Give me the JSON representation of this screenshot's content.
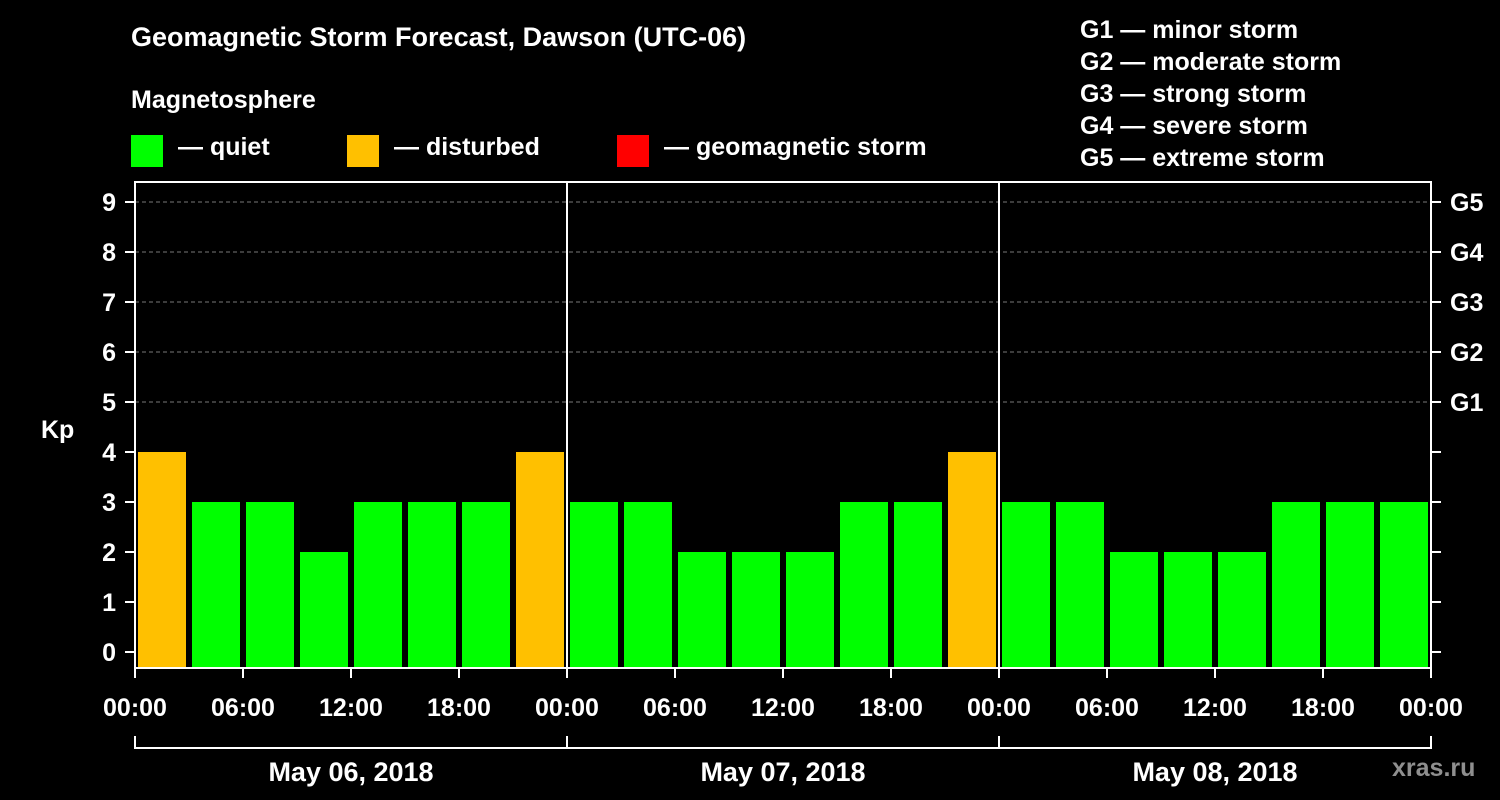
{
  "header": {
    "title": "Geomagnetic Storm Forecast, Dawson (UTC-06)",
    "subtitle": "Magnetosphere"
  },
  "legend": [
    {
      "label": "— quiet",
      "color": "#00ff00"
    },
    {
      "label": "— disturbed",
      "color": "#ffc000"
    },
    {
      "label": "— geomagnetic storm",
      "color": "#ff0000"
    }
  ],
  "storm_levels": [
    "G1 — minor storm",
    "G2 — moderate storm",
    "G3 — strong storm",
    "G4 — severe storm",
    "G5 — extreme storm"
  ],
  "credit": "xras.ru",
  "chart_data": {
    "type": "bar",
    "title": "Geomagnetic Storm Forecast, Dawson (UTC-06)",
    "ylabel": "Kp",
    "ylim": [
      0,
      9
    ],
    "yticks": [
      "0",
      "1",
      "2",
      "3",
      "4",
      "5",
      "6",
      "7",
      "8",
      "9"
    ],
    "right_axis": [
      {
        "kp": 5,
        "label": "G1"
      },
      {
        "kp": 6,
        "label": "G2"
      },
      {
        "kp": 7,
        "label": "G3"
      },
      {
        "kp": 8,
        "label": "G4"
      },
      {
        "kp": 9,
        "label": "G5"
      }
    ],
    "xtick_labels": [
      "00:00",
      "06:00",
      "12:00",
      "18:00",
      "00:00",
      "06:00",
      "12:00",
      "18:00",
      "00:00",
      "06:00",
      "12:00",
      "18:00",
      "00:00"
    ],
    "days": [
      "May 06, 2018",
      "May 07, 2018",
      "May 08, 2018"
    ],
    "interval_hours": 3,
    "values": [
      4,
      3,
      3,
      2,
      3,
      3,
      3,
      4,
      3,
      3,
      2,
      2,
      2,
      3,
      3,
      4,
      3,
      3,
      2,
      2,
      2,
      3,
      3,
      3
    ],
    "thresholds": {
      "disturbed": 4,
      "storm": 5
    },
    "colors": {
      "quiet": "#00ff00",
      "disturbed": "#ffc000",
      "storm": "#ff0000"
    },
    "grid": true
  }
}
